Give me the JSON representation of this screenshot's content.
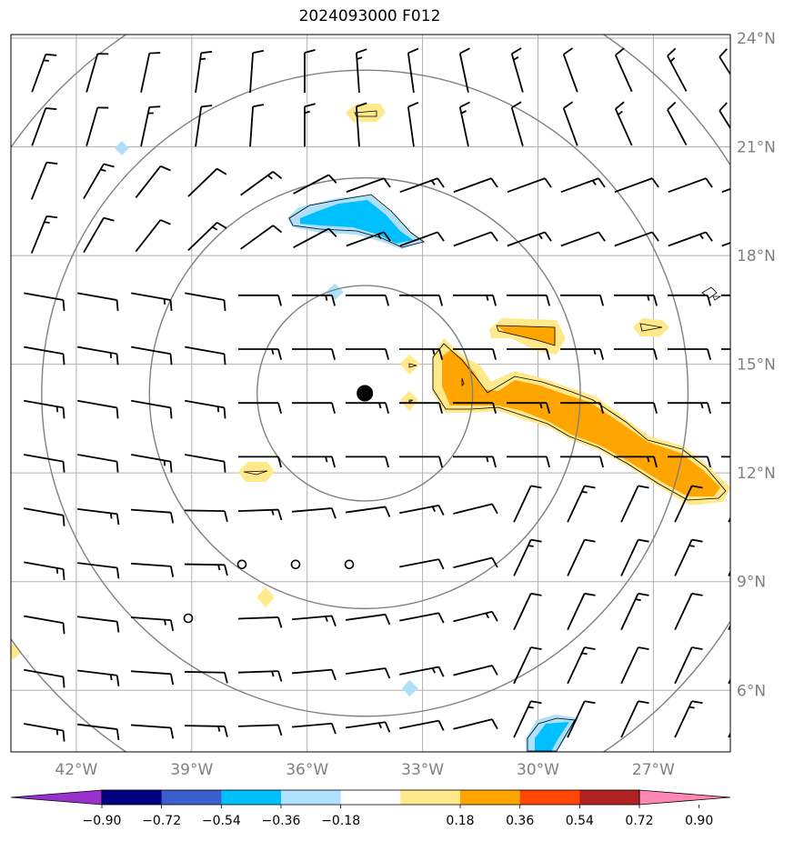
{
  "title": "2024093000 F012",
  "map": {
    "lon_range": [
      -43.7,
      -25.0
    ],
    "lat_range": [
      4.3,
      24.1
    ],
    "lat_ticks": [
      {
        "value": 24,
        "label": "24°N"
      },
      {
        "value": 21,
        "label": "21°N"
      },
      {
        "value": 18,
        "label": "18°N"
      },
      {
        "value": 15,
        "label": "15°N"
      },
      {
        "value": 12,
        "label": "12°N"
      },
      {
        "value": 9,
        "label": "9°N"
      },
      {
        "value": 6,
        "label": "6°N"
      }
    ],
    "lon_ticks": [
      {
        "value": -42,
        "label": "42°W"
      },
      {
        "value": -39,
        "label": "39°W"
      },
      {
        "value": -36,
        "label": "36°W"
      },
      {
        "value": -33,
        "label": "33°W"
      },
      {
        "value": -30,
        "label": "30°W"
      },
      {
        "value": -27,
        "label": "27°W"
      }
    ],
    "center": {
      "lon": -34.5,
      "lat": 14.2
    },
    "range_ring_radii_deg": [
      2.8,
      5.6,
      8.4,
      11.2
    ],
    "colors": {
      "grid": "#b0b0b0",
      "ring": "#808080",
      "barb": "#000000",
      "center_dot": "#000000",
      "pos_light": "#ffe98a",
      "pos_mid": "#ffa500",
      "neg_light": "#aee0fa",
      "neg_mid": "#00bfff"
    }
  },
  "colorbar": {
    "colors": [
      "#9932cc",
      "#000080",
      "#3a5fcd",
      "#00bfff",
      "#b0e2ff",
      "#ffffff",
      "#ffe98a",
      "#ffa500",
      "#ff4500",
      "#b22222",
      "#ff87b4"
    ],
    "tick_labels": [
      "−0.90",
      "−0.72",
      "−0.54",
      "−0.36",
      "−0.18",
      "0.18",
      "0.36",
      "0.54",
      "0.72",
      "0.90"
    ]
  }
}
